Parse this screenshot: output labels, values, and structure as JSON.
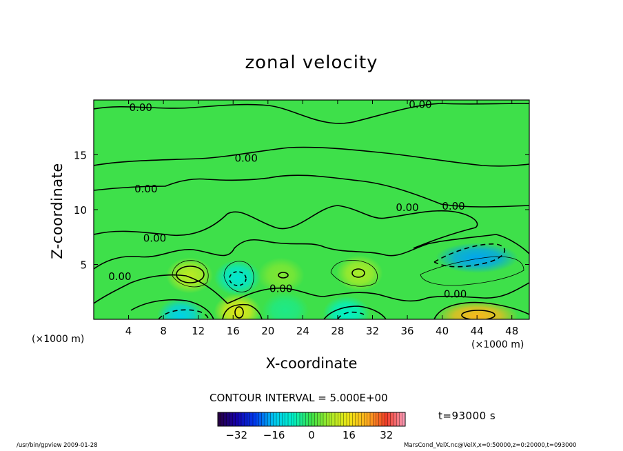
{
  "title": "zonal velocity",
  "chart_data": {
    "type": "heatmap",
    "title": "zonal velocity",
    "xlabel": "X-coordinate",
    "ylabel": "Z-coordinate",
    "x_unit_label": "(×1000 m)",
    "xlim": [
      0,
      50
    ],
    "ylim": [
      0,
      20
    ],
    "x_ticks": [
      4,
      8,
      12,
      16,
      20,
      24,
      28,
      32,
      36,
      40,
      44,
      48
    ],
    "y_ticks": [
      5,
      10,
      15
    ],
    "x_tick_labels": [
      "4",
      "8",
      "12",
      "16",
      "20",
      "24",
      "28",
      "32",
      "36",
      "40",
      "44",
      "48"
    ],
    "y_tick_labels": [
      "5",
      "10",
      "15"
    ],
    "contour_label": "0.00",
    "contour_interval_label": "CONTOUR INTERVAL = 5.000E+00",
    "colorbar": {
      "range": [
        -40,
        40
      ],
      "ticks": [
        -32,
        -16,
        0,
        16,
        32
      ],
      "tick_labels": [
        "−32",
        "−16",
        "0",
        "16",
        "32"
      ]
    },
    "features": [
      {
        "x": 11,
        "z": 4,
        "value": 10
      },
      {
        "x": 16.5,
        "z": 3.8,
        "value": -10
      },
      {
        "x": 21.5,
        "z": 4,
        "value": 5
      },
      {
        "x": 30.5,
        "z": 4.2,
        "value": 8
      },
      {
        "x": 44,
        "z": 5.6,
        "value": -18
      },
      {
        "x": 10,
        "z": 0.3,
        "value": -14
      },
      {
        "x": 16.5,
        "z": 0.7,
        "value": 14
      },
      {
        "x": 22,
        "z": 0.8,
        "value": -4
      },
      {
        "x": 29,
        "z": 0.5,
        "value": -8
      },
      {
        "x": 44,
        "z": 0.3,
        "value": 22
      }
    ],
    "contour_label_positions": [
      {
        "x": 5.4,
        "z": 19.3
      },
      {
        "x": 37.5,
        "z": 19.6
      },
      {
        "x": 17.5,
        "z": 14.7
      },
      {
        "x": 6,
        "z": 11.9
      },
      {
        "x": 36,
        "z": 10.2
      },
      {
        "x": 41.3,
        "z": 10.3
      },
      {
        "x": 7,
        "z": 7.4
      },
      {
        "x": 3,
        "z": 3.9
      },
      {
        "x": 21.5,
        "z": 2.8
      },
      {
        "x": 41.5,
        "z": 2.3
      }
    ]
  },
  "time_label": "t=93000 s",
  "footer_left": "/usr/bin/gpview   2009-01-28",
  "footer_right": "MarsCond_VelX.nc@VelX,x=0:50000,z=0:20000,t=093000"
}
